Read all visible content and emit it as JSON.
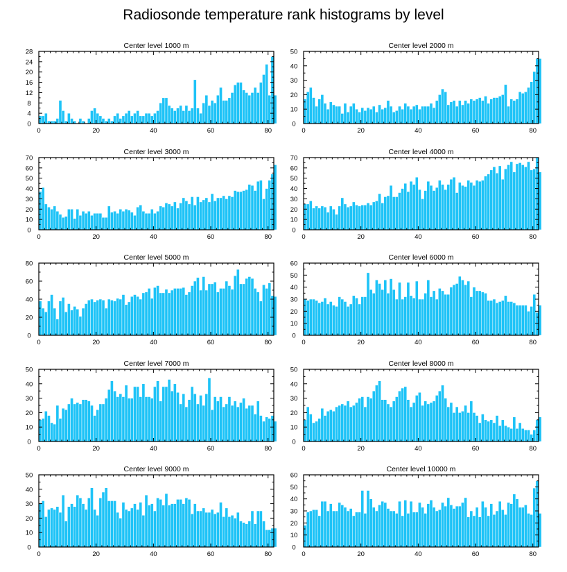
{
  "figure_title": "Radiosonde temperature rank histograms by level",
  "colors": {
    "bar": "#1ec3f7",
    "bar_edge": "#ffffff",
    "axis": "#000000"
  },
  "chart_data": [
    {
      "type": "bar",
      "title": "Center level 1000 m",
      "xlabel": "",
      "ylabel": "",
      "xlim": [
        0,
        82
      ],
      "ylim": [
        0,
        28
      ],
      "xticks": [
        0,
        20,
        40,
        60,
        80
      ],
      "xtick_labels": [
        "0",
        "20",
        "40",
        "60",
        "80"
      ],
      "yticks": [
        0,
        4,
        8,
        12,
        16,
        20,
        24,
        28
      ],
      "ytick_labels": [
        "0",
        "4",
        "8",
        "12",
        "16",
        "20",
        "24",
        "28"
      ],
      "values": [
        3,
        3,
        4,
        1,
        1,
        1,
        2,
        9,
        5,
        1,
        4,
        2,
        1,
        0,
        2,
        1,
        0,
        2,
        5,
        6,
        4,
        3,
        2,
        1,
        2,
        1,
        3,
        4,
        2,
        3,
        4,
        5,
        3,
        4,
        5,
        3,
        3,
        4,
        4,
        3,
        4,
        5,
        8,
        10,
        10,
        7,
        6,
        5,
        6,
        7,
        5,
        7,
        5,
        6,
        17,
        6,
        4,
        8,
        11,
        7,
        9,
        8,
        11,
        14,
        9,
        9,
        10,
        12,
        15,
        16,
        16,
        13,
        12,
        11,
        12,
        14,
        12,
        16,
        19,
        23,
        11,
        26,
        11
      ]
    },
    {
      "type": "bar",
      "title": "Center level 2000 m",
      "xlabel": "",
      "ylabel": "",
      "xlim": [
        0,
        82
      ],
      "ylim": [
        0,
        50
      ],
      "xticks": [
        0,
        20,
        40,
        60,
        80
      ],
      "xtick_labels": [
        "0",
        "20",
        "40",
        "60",
        "80"
      ],
      "yticks": [
        0,
        10,
        20,
        30,
        40,
        50
      ],
      "ytick_labels": [
        "0",
        "10",
        "20",
        "30",
        "40",
        "50"
      ],
      "values": [
        17,
        22,
        25,
        18,
        12,
        17,
        20,
        14,
        10,
        15,
        13,
        12,
        12,
        7,
        14,
        8,
        12,
        14,
        10,
        8,
        11,
        9,
        11,
        10,
        12,
        8,
        13,
        10,
        11,
        16,
        12,
        8,
        9,
        12,
        10,
        14,
        12,
        10,
        12,
        13,
        10,
        12,
        12,
        12,
        14,
        11,
        16,
        20,
        24,
        22,
        13,
        15,
        16,
        12,
        16,
        13,
        16,
        14,
        17,
        16,
        17,
        18,
        16,
        19,
        14,
        17,
        18,
        18,
        19,
        20,
        27,
        12,
        17,
        16,
        17,
        22,
        21,
        22,
        25,
        29,
        36,
        45,
        45
      ]
    },
    {
      "type": "bar",
      "title": "Center level 3000 m",
      "xlabel": "",
      "ylabel": "",
      "xlim": [
        0,
        82
      ],
      "ylim": [
        0,
        70
      ],
      "xticks": [
        0,
        20,
        40,
        60,
        80
      ],
      "xtick_labels": [
        "0",
        "20",
        "40",
        "60",
        "80"
      ],
      "yticks": [
        0,
        10,
        20,
        30,
        40,
        50,
        60,
        70
      ],
      "ytick_labels": [
        "0",
        "10",
        "20",
        "30",
        "40",
        "50",
        "60",
        "70"
      ],
      "values": [
        37,
        41,
        25,
        22,
        20,
        23,
        18,
        15,
        12,
        13,
        20,
        20,
        11,
        20,
        14,
        18,
        16,
        18,
        14,
        16,
        16,
        16,
        12,
        12,
        23,
        17,
        18,
        16,
        20,
        18,
        20,
        19,
        17,
        14,
        22,
        24,
        18,
        16,
        16,
        20,
        16,
        18,
        23,
        22,
        26,
        25,
        23,
        27,
        21,
        26,
        31,
        28,
        25,
        32,
        24,
        32,
        27,
        29,
        31,
        27,
        35,
        28,
        31,
        31,
        33,
        30,
        33,
        32,
        38,
        37,
        37,
        38,
        39,
        44,
        43,
        38,
        47,
        48,
        30,
        40,
        48,
        54,
        63
      ]
    },
    {
      "type": "bar",
      "title": "Center level 4000 m",
      "xlabel": "",
      "ylabel": "",
      "xlim": [
        0,
        82
      ],
      "ylim": [
        0,
        70
      ],
      "xticks": [
        0,
        20,
        40,
        60,
        80
      ],
      "xtick_labels": [
        "0",
        "20",
        "40",
        "60",
        "80"
      ],
      "yticks": [
        0,
        10,
        20,
        30,
        40,
        50,
        60,
        70
      ],
      "ytick_labels": [
        "0",
        "10",
        "20",
        "30",
        "40",
        "50",
        "60",
        "70"
      ],
      "values": [
        25,
        25,
        28,
        21,
        23,
        21,
        23,
        22,
        17,
        23,
        20,
        15,
        23,
        31,
        25,
        22,
        23,
        27,
        24,
        23,
        24,
        24,
        26,
        24,
        27,
        28,
        35,
        26,
        32,
        33,
        43,
        32,
        32,
        36,
        40,
        45,
        37,
        47,
        44,
        51,
        39,
        30,
        38,
        47,
        43,
        38,
        41,
        48,
        44,
        39,
        44,
        49,
        51,
        36,
        46,
        43,
        42,
        48,
        46,
        43,
        48,
        47,
        48,
        52,
        54,
        58,
        61,
        55,
        62,
        49,
        59,
        63,
        66,
        56,
        64,
        65,
        63,
        61,
        66,
        58,
        59,
        70,
        56
      ]
    },
    {
      "type": "bar",
      "title": "Center level 5000 m",
      "xlabel": "",
      "ylabel": "",
      "xlim": [
        0,
        82
      ],
      "ylim": [
        0,
        80
      ],
      "xticks": [
        0,
        20,
        40,
        60,
        80
      ],
      "xtick_labels": [
        "0",
        "20",
        "40",
        "60",
        "80"
      ],
      "yticks": [
        0,
        20,
        40,
        60,
        80
      ],
      "ytick_labels": [
        "0",
        "20",
        "40",
        "60",
        "80"
      ],
      "values": [
        38,
        30,
        26,
        38,
        45,
        30,
        18,
        38,
        42,
        26,
        35,
        28,
        32,
        29,
        21,
        30,
        35,
        39,
        40,
        37,
        39,
        40,
        39,
        30,
        40,
        39,
        38,
        41,
        40,
        45,
        34,
        37,
        43,
        45,
        43,
        40,
        47,
        48,
        52,
        41,
        53,
        55,
        47,
        47,
        51,
        47,
        50,
        52,
        52,
        52,
        53,
        45,
        48,
        55,
        60,
        64,
        50,
        65,
        50,
        57,
        57,
        59,
        48,
        52,
        52,
        60,
        55,
        51,
        66,
        73,
        57,
        57,
        63,
        65,
        63,
        52,
        48,
        38,
        56,
        52,
        58,
        44,
        43
      ]
    },
    {
      "type": "bar",
      "title": "Center level 6000 m",
      "xlabel": "",
      "ylabel": "",
      "xlim": [
        0,
        82
      ],
      "ylim": [
        0,
        60
      ],
      "xticks": [
        0,
        20,
        40,
        60,
        80
      ],
      "xtick_labels": [
        "0",
        "20",
        "40",
        "60",
        "80"
      ],
      "yticks": [
        0,
        10,
        20,
        30,
        40,
        50,
        60
      ],
      "ytick_labels": [
        "0",
        "10",
        "20",
        "30",
        "40",
        "50",
        "60"
      ],
      "values": [
        30,
        29,
        30,
        30,
        29,
        27,
        28,
        31,
        26,
        28,
        25,
        24,
        32,
        30,
        28,
        24,
        26,
        33,
        31,
        26,
        32,
        32,
        52,
        38,
        35,
        46,
        43,
        38,
        46,
        35,
        47,
        38,
        30,
        44,
        30,
        32,
        44,
        33,
        31,
        45,
        30,
        30,
        35,
        46,
        32,
        37,
        30,
        39,
        37,
        34,
        34,
        40,
        42,
        43,
        49,
        46,
        42,
        45,
        32,
        40,
        37,
        37,
        36,
        35,
        29,
        29,
        30,
        27,
        28,
        29,
        33,
        28,
        28,
        27,
        25,
        25,
        25,
        25,
        20,
        24,
        34,
        19,
        25
      ]
    },
    {
      "type": "bar",
      "title": "Center level 7000 m",
      "xlabel": "",
      "ylabel": "",
      "xlim": [
        0,
        82
      ],
      "ylim": [
        0,
        50
      ],
      "xticks": [
        0,
        20,
        40,
        60,
        80
      ],
      "xtick_labels": [
        "0",
        "20",
        "40",
        "60",
        "80"
      ],
      "yticks": [
        0,
        10,
        20,
        30,
        40,
        50
      ],
      "ytick_labels": [
        "0",
        "10",
        "20",
        "30",
        "40",
        "50"
      ],
      "values": [
        15,
        16,
        21,
        18,
        13,
        12,
        25,
        16,
        23,
        22,
        26,
        30,
        26,
        27,
        26,
        29,
        29,
        28,
        25,
        18,
        22,
        26,
        26,
        30,
        36,
        42,
        35,
        31,
        33,
        31,
        39,
        30,
        30,
        38,
        38,
        31,
        40,
        31,
        31,
        30,
        38,
        42,
        28,
        38,
        38,
        43,
        35,
        40,
        34,
        26,
        33,
        24,
        29,
        38,
        33,
        26,
        32,
        25,
        33,
        44,
        22,
        31,
        28,
        31,
        24,
        26,
        31,
        25,
        28,
        24,
        27,
        30,
        23,
        25,
        25,
        19,
        28,
        18,
        14,
        17,
        16,
        18,
        14
      ]
    },
    {
      "type": "bar",
      "title": "Center level 8000 m",
      "xlabel": "",
      "ylabel": "",
      "xlim": [
        0,
        82
      ],
      "ylim": [
        0,
        50
      ],
      "xticks": [
        0,
        20,
        40,
        60,
        80
      ],
      "xtick_labels": [
        "0",
        "20",
        "40",
        "60",
        "80"
      ],
      "yticks": [
        0,
        10,
        20,
        30,
        40,
        50
      ],
      "ytick_labels": [
        "0",
        "10",
        "20",
        "30",
        "40",
        "50"
      ],
      "values": [
        15,
        24,
        19,
        13,
        14,
        16,
        23,
        18,
        21,
        22,
        21,
        24,
        25,
        26,
        25,
        28,
        24,
        25,
        27,
        30,
        31,
        24,
        31,
        30,
        35,
        39,
        42,
        29,
        29,
        26,
        24,
        28,
        31,
        35,
        37,
        38,
        29,
        24,
        27,
        32,
        34,
        25,
        28,
        26,
        27,
        28,
        32,
        35,
        39,
        30,
        24,
        27,
        20,
        24,
        20,
        21,
        25,
        20,
        28,
        20,
        18,
        13,
        19,
        15,
        14,
        15,
        13,
        18,
        11,
        15,
        11,
        10,
        9,
        17,
        9,
        13,
        9,
        8,
        8,
        5,
        8,
        15,
        17
      ]
    },
    {
      "type": "bar",
      "title": "Center level 9000 m",
      "xlabel": "",
      "ylabel": "",
      "xlim": [
        0,
        82
      ],
      "ylim": [
        0,
        50
      ],
      "xticks": [
        0,
        20,
        40,
        60,
        80
      ],
      "xtick_labels": [
        "0",
        "20",
        "40",
        "60",
        "80"
      ],
      "yticks": [
        0,
        10,
        20,
        30,
        40,
        50
      ],
      "ytick_labels": [
        "0",
        "10",
        "20",
        "30",
        "40",
        "50"
      ],
      "values": [
        30,
        32,
        21,
        26,
        27,
        26,
        28,
        24,
        36,
        18,
        28,
        30,
        28,
        36,
        34,
        30,
        26,
        34,
        41,
        26,
        22,
        34,
        38,
        41,
        32,
        32,
        32,
        24,
        20,
        31,
        26,
        25,
        27,
        30,
        26,
        31,
        22,
        36,
        29,
        30,
        25,
        34,
        33,
        29,
        37,
        29,
        30,
        30,
        33,
        33,
        30,
        34,
        33,
        23,
        30,
        25,
        25,
        27,
        24,
        24,
        26,
        23,
        24,
        31,
        21,
        27,
        21,
        22,
        20,
        24,
        18,
        17,
        16,
        18,
        25,
        16,
        25,
        25,
        18,
        12,
        12,
        13,
        13
      ]
    },
    {
      "type": "bar",
      "title": "Center level 10000 m",
      "xlabel": "",
      "ylabel": "",
      "xlim": [
        0,
        82
      ],
      "ylim": [
        0,
        60
      ],
      "xticks": [
        0,
        20,
        40,
        60,
        80
      ],
      "xtick_labels": [
        "0",
        "20",
        "40",
        "60",
        "80"
      ],
      "yticks": [
        0,
        10,
        20,
        30,
        40,
        50,
        60
      ],
      "ytick_labels": [
        "0",
        "10",
        "20",
        "30",
        "40",
        "50",
        "60"
      ],
      "values": [
        18,
        29,
        30,
        31,
        31,
        26,
        38,
        38,
        30,
        36,
        30,
        30,
        37,
        35,
        33,
        30,
        32,
        26,
        29,
        29,
        47,
        28,
        47,
        40,
        33,
        30,
        35,
        38,
        37,
        32,
        30,
        30,
        28,
        38,
        26,
        39,
        28,
        38,
        29,
        29,
        37,
        33,
        28,
        36,
        39,
        33,
        30,
        31,
        37,
        34,
        41,
        35,
        32,
        34,
        34,
        37,
        41,
        25,
        30,
        26,
        33,
        25,
        38,
        33,
        26,
        36,
        27,
        30,
        38,
        31,
        27,
        37,
        36,
        44,
        40,
        33,
        33,
        35,
        28,
        27,
        49,
        55,
        28
      ]
    }
  ]
}
